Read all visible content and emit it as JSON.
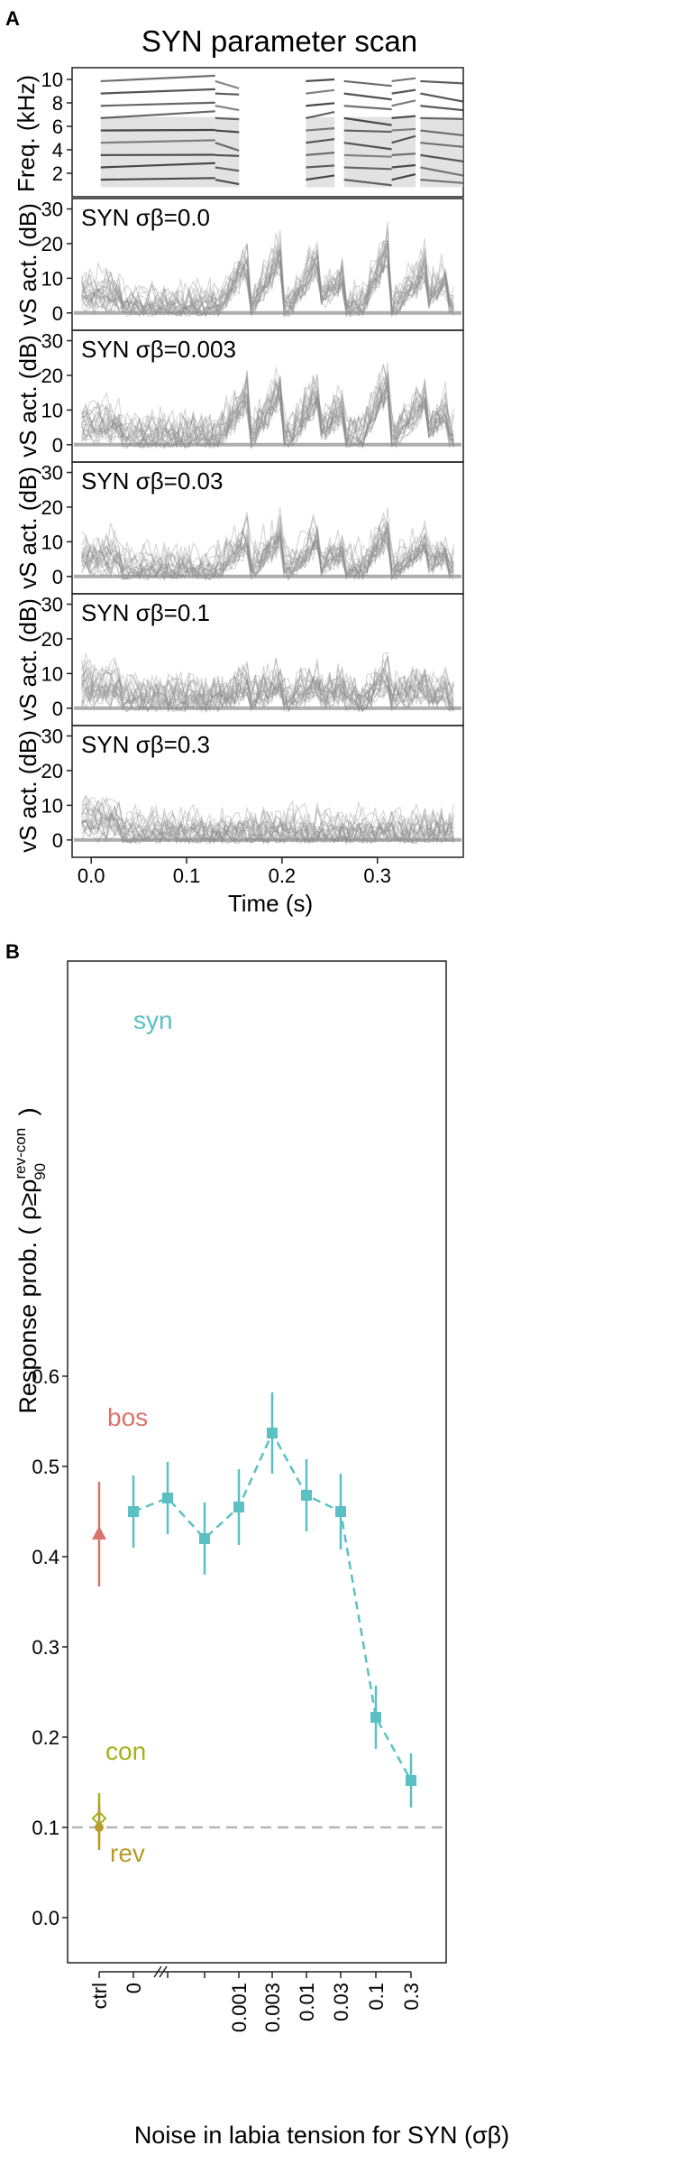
{
  "panel_a": {
    "letter": "A",
    "title": "SYN parameter scan",
    "spectrogram": {
      "ylabel": "Freq. (kHz)",
      "yticks": [
        2,
        4,
        6,
        8,
        10
      ]
    },
    "activity_ylabel": "vS act. (dB)",
    "activity_yticks": [
      0,
      10,
      20,
      30
    ],
    "xlabel": "Time (s)",
    "xticks": [
      "0.0",
      "0.1",
      "0.2",
      "0.3"
    ],
    "trace_color": "#8c8c8c"
  },
  "panel_b": {
    "letter": "B",
    "ylabel": "Response prob. ( ρ≥ρ",
    "ylabel_sup": "rev-con",
    "ylabel_sub": "90",
    "ylabel_tail": " )",
    "xlabel": "Noise in labia tension for SYN (σβ)",
    "colors": {
      "syn": "#5bc0c4",
      "bos": "#d9736b",
      "con": "#a3b11a",
      "rev": "#b89a2a",
      "baseline": "#b5b5b5"
    }
  },
  "chart_data": [
    {
      "type": "heatmap",
      "panel": "A-spectrogram",
      "ylabel": "Freq. (kHz)",
      "ylim": [
        0,
        11
      ],
      "xlim": [
        -0.02,
        0.39
      ],
      "yticks": [
        2,
        4,
        6,
        8,
        10
      ],
      "syllables": [
        {
          "start": 0.01,
          "end": 0.13
        },
        {
          "start": 0.13,
          "end": 0.155
        },
        {
          "start": 0.225,
          "end": 0.255
        },
        {
          "start": 0.265,
          "end": 0.315
        },
        {
          "start": 0.315,
          "end": 0.34
        },
        {
          "start": 0.345,
          "end": 0.39
        }
      ]
    },
    {
      "type": "line",
      "panel": "A-activity",
      "xlabel": "Time (s)",
      "ylabel": "vS act. (dB)",
      "xlim": [
        -0.02,
        0.39
      ],
      "ylim": [
        -5,
        33
      ],
      "xticks": [
        "0.0",
        "0.1",
        "0.2",
        "0.3"
      ],
      "yticks": [
        0,
        10,
        20,
        30
      ],
      "subplots": [
        {
          "label": "SYN σβ=0.0",
          "noise": 0.0
        },
        {
          "label": "SYN σβ=0.003",
          "noise": 0.003
        },
        {
          "label": "SYN σβ=0.03",
          "noise": 0.03
        },
        {
          "label": "SYN σβ=0.1",
          "noise": 0.1
        },
        {
          "label": "SYN σβ=0.3",
          "noise": 0.3
        }
      ]
    },
    {
      "type": "line",
      "panel": "B",
      "ylabel": "Response prob.",
      "xlabel": "Noise in labia tension for SYN (σβ)",
      "ylim": [
        0.0,
        0.6
      ],
      "yticks": [
        "0.0",
        "0.1",
        "0.2",
        "0.3",
        "0.4",
        "0.5",
        "0.6"
      ],
      "xticks": [
        "ctrl",
        "0",
        "0.001",
        "0.003",
        "0.01",
        "0.03",
        "0.1",
        "0.3"
      ],
      "baseline": 0.1,
      "series": [
        {
          "name": "syn",
          "x": [
            "0",
            "·",
            "·",
            "0.001",
            "0.003",
            "0.01",
            "0.03",
            "0.1",
            "0.3"
          ],
          "values": [
            0.45,
            0.465,
            0.42,
            0.455,
            0.537,
            0.468,
            0.45,
            0.222,
            0.152
          ],
          "err": [
            0.04,
            0.04,
            0.04,
            0.042,
            0.045,
            0.04,
            0.042,
            0.035,
            0.03
          ]
        },
        {
          "name": "bos",
          "x": [
            "ctrl"
          ],
          "values": [
            0.425
          ],
          "err": [
            0.058
          ]
        },
        {
          "name": "con",
          "x": [
            "ctrl"
          ],
          "values": [
            0.11
          ],
          "err": [
            0.028
          ]
        },
        {
          "name": "rev",
          "x": [
            "ctrl"
          ],
          "values": [
            0.1
          ],
          "err": [
            0.025
          ]
        }
      ]
    }
  ]
}
